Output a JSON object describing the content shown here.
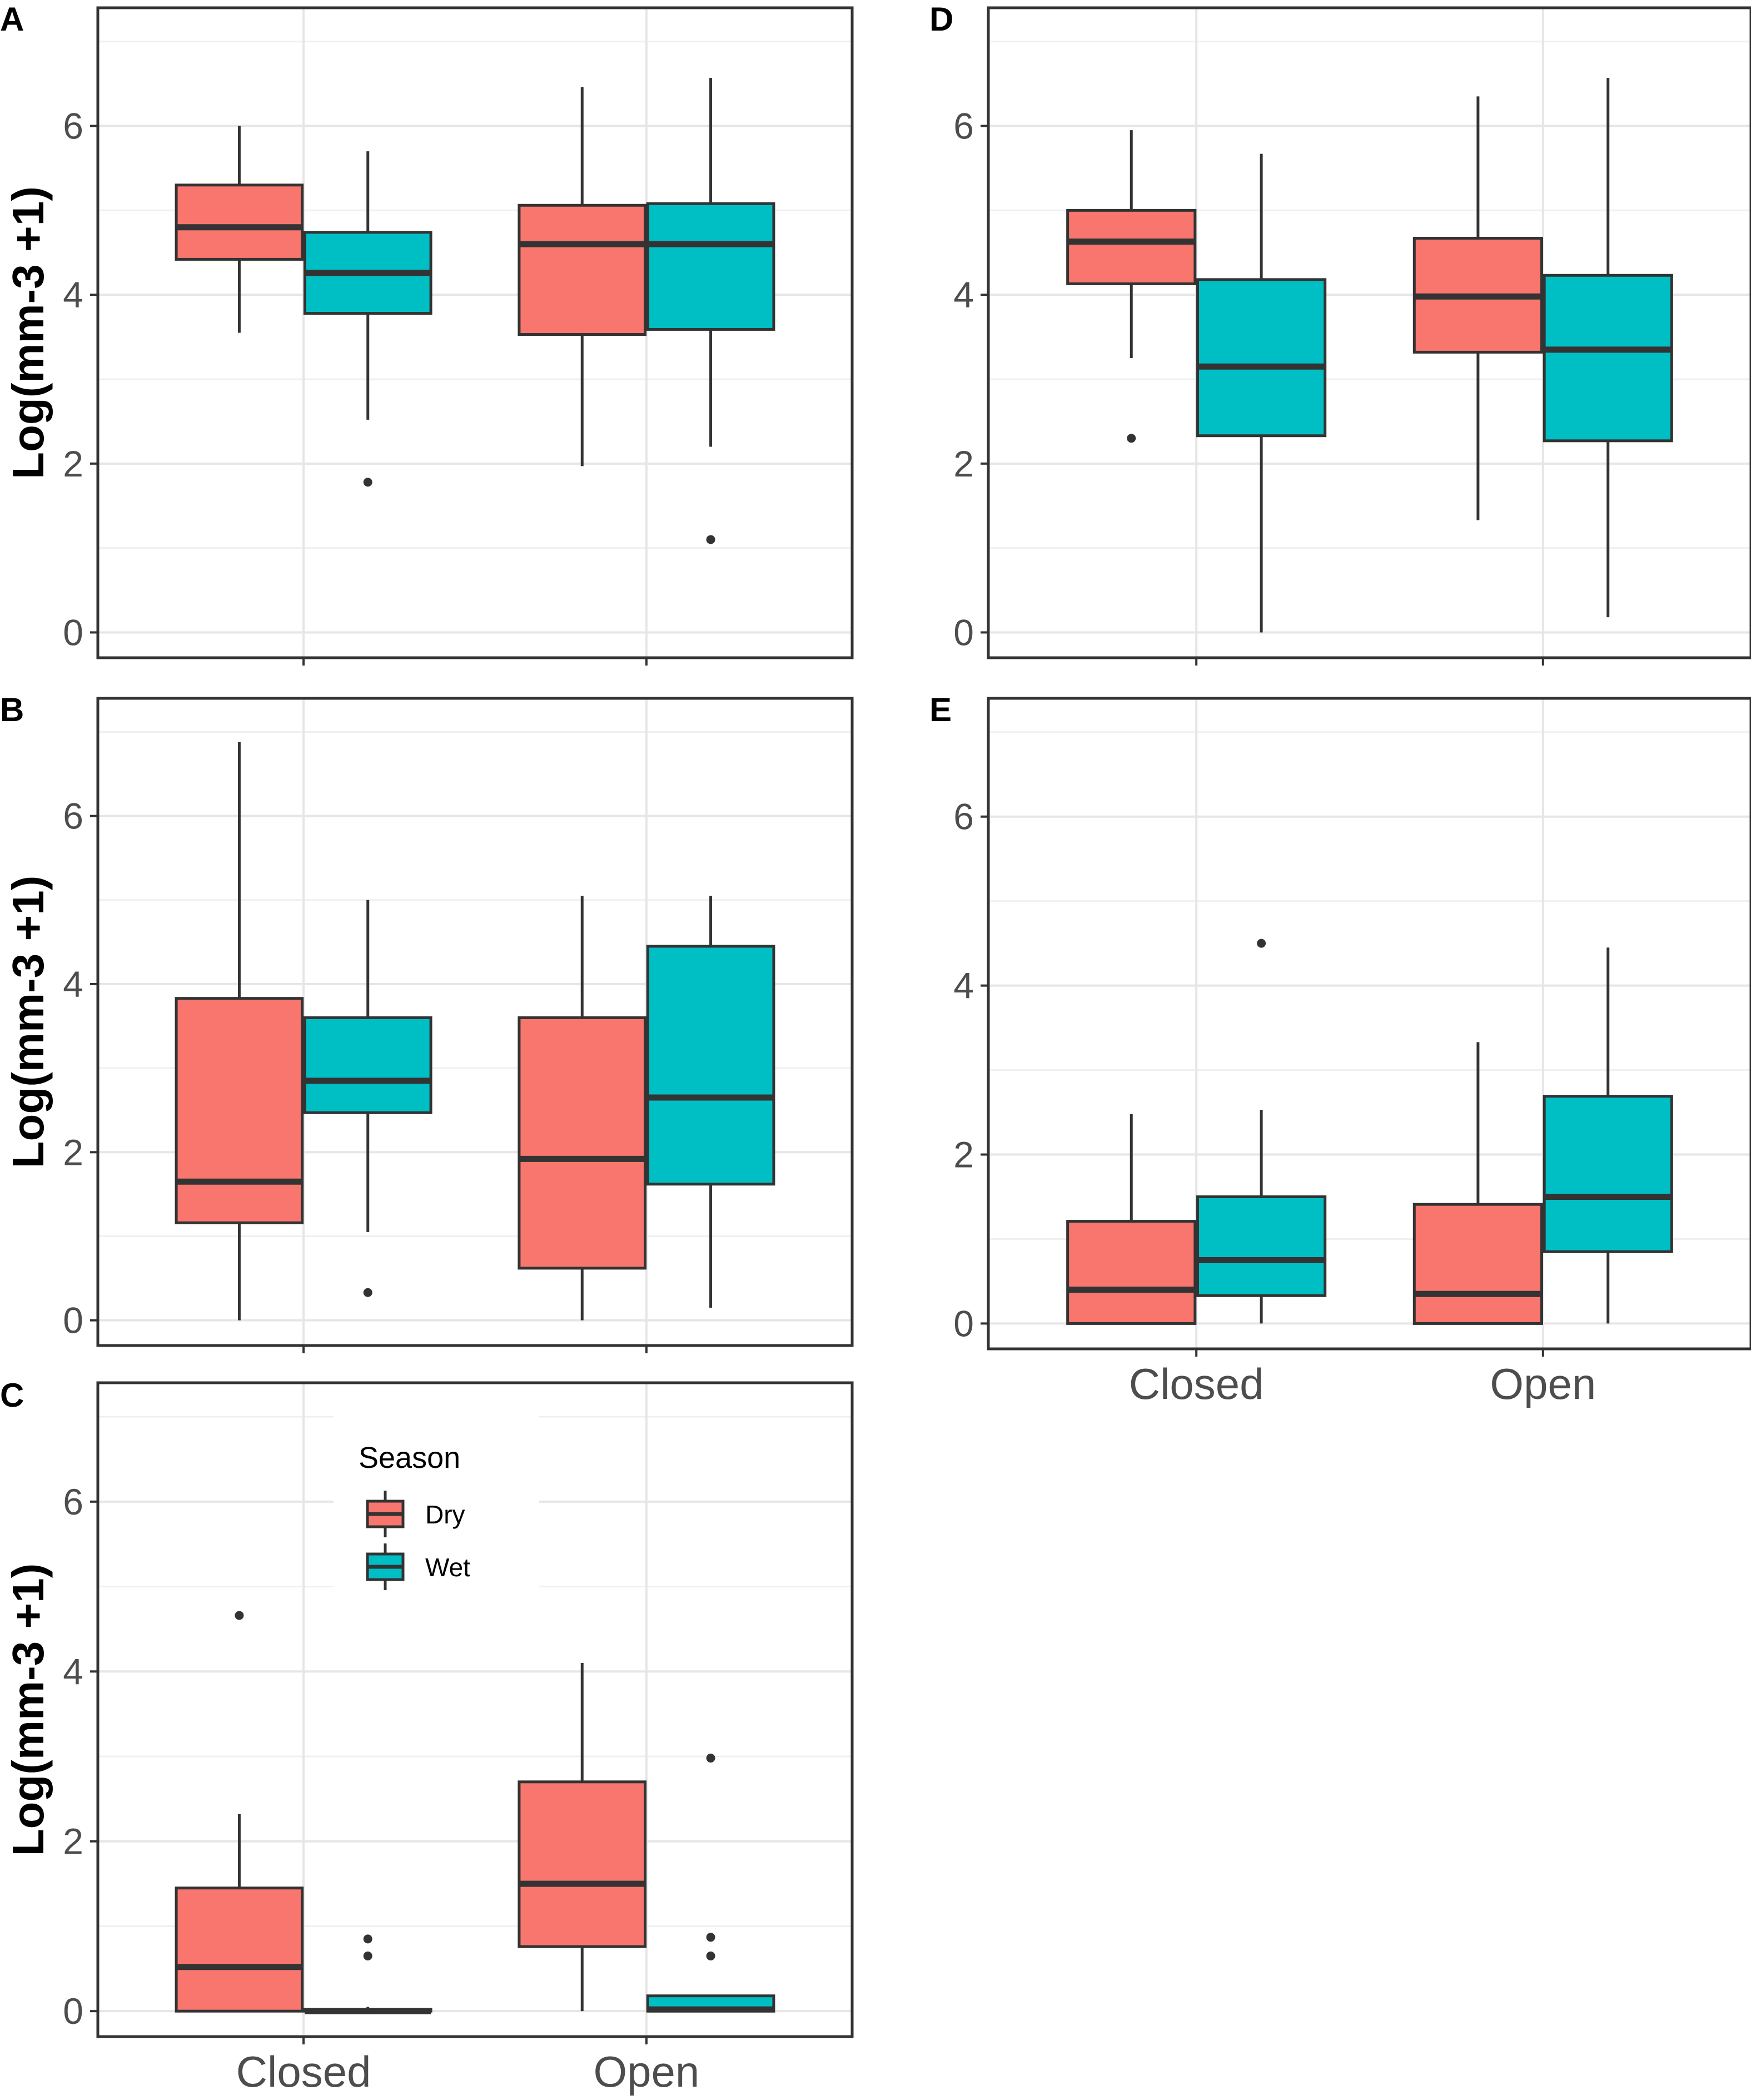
{
  "chart_data": [
    {
      "panel": "A",
      "type": "boxplot",
      "ylabel": "Log(mm-3 +1)",
      "ylim": [
        -0.3,
        7.4
      ],
      "yticks": [
        0,
        2,
        4,
        6
      ],
      "categories": [
        "Closed",
        "Open"
      ],
      "series": [
        {
          "name": "Dry",
          "color": "#F8766D",
          "boxes": [
            {
              "category": "Closed",
              "lower": 3.55,
              "q1": 4.42,
              "median": 4.8,
              "q3": 5.3,
              "upper": 6.0,
              "outliers": []
            },
            {
              "category": "Open",
              "lower": 1.97,
              "q1": 3.53,
              "median": 4.6,
              "q3": 5.06,
              "upper": 6.46,
              "outliers": []
            }
          ]
        },
        {
          "name": "Wet",
          "color": "#00BFC4",
          "boxes": [
            {
              "category": "Closed",
              "lower": 2.52,
              "q1": 3.78,
              "median": 4.26,
              "q3": 4.74,
              "upper": 5.7,
              "outliers": [
                1.78
              ]
            },
            {
              "category": "Open",
              "lower": 2.2,
              "q1": 3.59,
              "median": 4.6,
              "q3": 5.08,
              "upper": 6.57,
              "outliers": [
                1.1
              ]
            }
          ]
        }
      ]
    },
    {
      "panel": "B",
      "type": "boxplot",
      "ylabel": "Log(mm-3 +1)",
      "ylim": [
        -0.3,
        7.4
      ],
      "yticks": [
        0,
        2,
        4,
        6
      ],
      "categories": [
        "Closed",
        "Open"
      ],
      "series": [
        {
          "name": "Dry",
          "color": "#F8766D",
          "boxes": [
            {
              "category": "Closed",
              "lower": 0.0,
              "q1": 1.16,
              "median": 1.65,
              "q3": 3.83,
              "upper": 6.88,
              "outliers": []
            },
            {
              "category": "Open",
              "lower": 0.0,
              "q1": 0.62,
              "median": 1.92,
              "q3": 3.6,
              "upper": 5.05,
              "outliers": []
            }
          ]
        },
        {
          "name": "Wet",
          "color": "#00BFC4",
          "boxes": [
            {
              "category": "Closed",
              "lower": 1.05,
              "q1": 2.47,
              "median": 2.85,
              "q3": 3.6,
              "upper": 5.0,
              "outliers": [
                0.33
              ]
            },
            {
              "category": "Open",
              "lower": 0.15,
              "q1": 1.62,
              "median": 2.65,
              "q3": 4.45,
              "upper": 5.05,
              "outliers": []
            }
          ]
        }
      ]
    },
    {
      "panel": "C",
      "type": "boxplot",
      "ylabel": "Log(mm-3 +1)",
      "ylim": [
        -0.3,
        7.4
      ],
      "yticks": [
        0,
        2,
        4,
        6
      ],
      "categories": [
        "Closed",
        "Open"
      ],
      "xlabels_shown": true,
      "legend": {
        "title": "Season",
        "entries": [
          "Dry",
          "Wet"
        ]
      },
      "series": [
        {
          "name": "Dry",
          "color": "#F8766D",
          "boxes": [
            {
              "category": "Closed",
              "lower": 0.0,
              "q1": 0.0,
              "median": 0.52,
              "q3": 1.45,
              "upper": 2.32,
              "outliers": [
                4.66
              ]
            },
            {
              "category": "Open",
              "lower": 0.0,
              "q1": 0.76,
              "median": 1.5,
              "q3": 2.7,
              "upper": 4.1,
              "outliers": []
            }
          ]
        },
        {
          "name": "Wet",
          "color": "#00BFC4",
          "boxes": [
            {
              "category": "Closed",
              "lower": 0.0,
              "q1": 0.0,
              "median": 0.0,
              "q3": 0.02,
              "upper": 0.05,
              "outliers": [
                0.65,
                0.85
              ]
            },
            {
              "category": "Open",
              "lower": 0.0,
              "q1": 0.0,
              "median": 0.02,
              "q3": 0.18,
              "upper": 0.18,
              "outliers": [
                0.65,
                0.87,
                2.98
              ]
            }
          ]
        }
      ]
    },
    {
      "panel": "D",
      "type": "boxplot",
      "ylabel": "",
      "ylim": [
        -0.3,
        7.4
      ],
      "yticks": [
        0,
        2,
        4,
        6
      ],
      "categories": [
        "Closed",
        "Open"
      ],
      "series": [
        {
          "name": "Dry",
          "color": "#F8766D",
          "boxes": [
            {
              "category": "Closed",
              "lower": 3.25,
              "q1": 4.13,
              "median": 4.63,
              "q3": 5.0,
              "upper": 5.95,
              "outliers": [
                2.3
              ]
            },
            {
              "category": "Open",
              "lower": 1.33,
              "q1": 3.32,
              "median": 3.98,
              "q3": 4.67,
              "upper": 6.35,
              "outliers": []
            }
          ]
        },
        {
          "name": "Wet",
          "color": "#00BFC4",
          "boxes": [
            {
              "category": "Closed",
              "lower": 0.0,
              "q1": 2.33,
              "median": 3.15,
              "q3": 4.18,
              "upper": 5.67,
              "outliers": []
            },
            {
              "category": "Open",
              "lower": 0.18,
              "q1": 2.27,
              "median": 3.35,
              "q3": 4.23,
              "upper": 6.57,
              "outliers": []
            }
          ]
        }
      ]
    },
    {
      "panel": "E",
      "type": "boxplot",
      "ylabel": "",
      "ylim": [
        -0.3,
        7.4
      ],
      "yticks": [
        0,
        2,
        4,
        6
      ],
      "categories": [
        "Closed",
        "Open"
      ],
      "xlabels_shown": true,
      "series": [
        {
          "name": "Dry",
          "color": "#F8766D",
          "boxes": [
            {
              "category": "Closed",
              "lower": 0.0,
              "q1": 0.0,
              "median": 0.4,
              "q3": 1.21,
              "upper": 2.48,
              "outliers": []
            },
            {
              "category": "Open",
              "lower": 0.0,
              "q1": 0.0,
              "median": 0.35,
              "q3": 1.41,
              "upper": 3.33,
              "outliers": []
            }
          ]
        },
        {
          "name": "Wet",
          "color": "#00BFC4",
          "boxes": [
            {
              "category": "Closed",
              "lower": 0.0,
              "q1": 0.33,
              "median": 0.75,
              "q3": 1.5,
              "upper": 2.53,
              "outliers": [
                4.5
              ]
            },
            {
              "category": "Open",
              "lower": 0.0,
              "q1": 0.85,
              "median": 1.5,
              "q3": 2.69,
              "upper": 4.45,
              "outliers": []
            }
          ]
        }
      ]
    }
  ]
}
